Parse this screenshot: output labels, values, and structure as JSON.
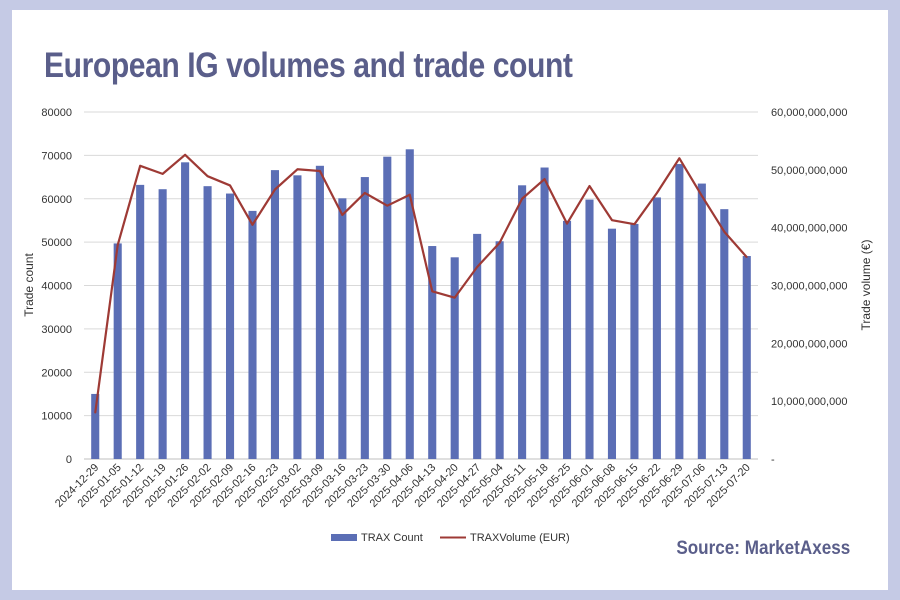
{
  "title": "European IG volumes and trade count",
  "source": "Source: MarketAxess",
  "colors": {
    "bars": "#5b6eb5",
    "line": "#9e3a35",
    "title": "#5a5e8a",
    "frame": "#c5cae5",
    "grid": "#d9d9d9"
  },
  "chart_data": {
    "type": "bar",
    "categories": [
      "2024-12-29",
      "2025-01-05",
      "2025-01-12",
      "2025-01-19",
      "2025-01-26",
      "2025-02-02",
      "2025-02-09",
      "2025-02-16",
      "2025-02-23",
      "2025-03-02",
      "2025-03-09",
      "2025-03-16",
      "2025-03-23",
      "2025-03-30",
      "2025-04-06",
      "2025-04-13",
      "2025-04-20",
      "2025-04-27",
      "2025-05-04",
      "2025-05-11",
      "2025-05-18",
      "2025-05-25",
      "2025-06-01",
      "2025-06-08",
      "2025-06-15",
      "2025-06-22",
      "2025-06-29",
      "2025-07-06",
      "2025-07-13",
      "2025-07-20"
    ],
    "series": [
      {
        "name": "TRAX Count",
        "type": "bar",
        "axis": "left",
        "values": [
          15000,
          49700,
          63200,
          62200,
          68400,
          62900,
          61200,
          57200,
          66600,
          65400,
          67600,
          60100,
          65000,
          69700,
          71400,
          49100,
          46500,
          51900,
          50200,
          63100,
          67200,
          54900,
          59800,
          53100,
          54200,
          60300,
          68000,
          63500,
          57600,
          46800
        ]
      },
      {
        "name": "TRAXVolume (EUR)",
        "type": "line",
        "axis": "right",
        "values": [
          8000000000,
          37000000000,
          50700000000,
          49300000000,
          52600000000,
          48900000000,
          47300000000,
          40500000000,
          46600000000,
          50100000000,
          49800000000,
          42200000000,
          46000000000,
          43800000000,
          45700000000,
          29000000000,
          27900000000,
          33200000000,
          37400000000,
          45000000000,
          48400000000,
          40700000000,
          47200000000,
          41300000000,
          40600000000,
          46000000000,
          52000000000,
          45500000000,
          39300000000,
          34900000000
        ]
      }
    ],
    "ylabel": "Trade count",
    "y2label": "Trade volume (€)",
    "ylim": [
      0,
      80000
    ],
    "y2lim": [
      0,
      60000000000
    ],
    "yticks": [
      "0",
      "10000",
      "20000",
      "30000",
      "40000",
      "50000",
      "60000",
      "70000",
      "80000"
    ],
    "y2ticks": [
      "-",
      "10,000,000,000",
      "20,000,000,000",
      "30,000,000,000",
      "40,000,000,000",
      "50,000,000,000",
      "60,000,000,000"
    ],
    "grid": true,
    "legend": "bottom"
  }
}
